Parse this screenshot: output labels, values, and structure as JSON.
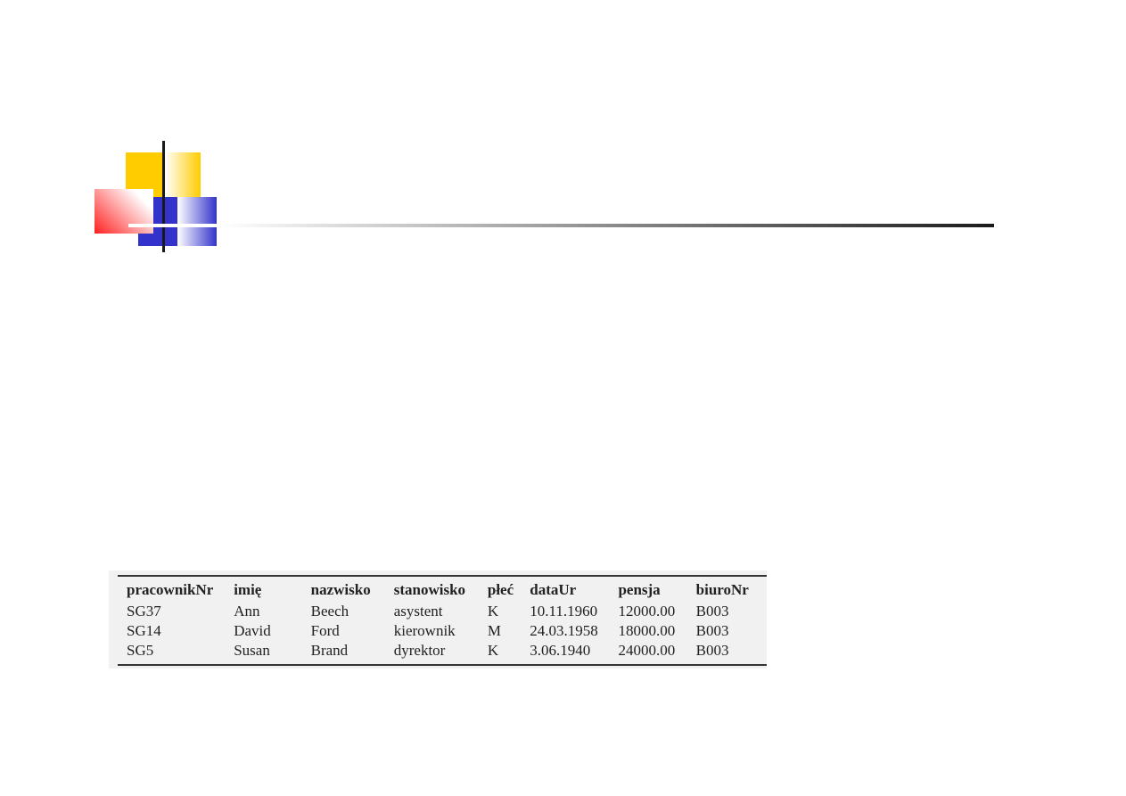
{
  "logo": {
    "colors": {
      "yellow": "#ffcc00",
      "blue": "#3333cc",
      "red": "#ff2020"
    }
  },
  "table": {
    "headers": [
      "pracownikNr",
      "imię",
      "nazwisko",
      "stanowisko",
      "płeć",
      "dataUr",
      "pensja",
      "biuroNr"
    ],
    "rows": [
      [
        "SG37",
        "Ann",
        "Beech",
        "asystent",
        "K",
        "10.11.1960",
        "12000.00",
        "B003"
      ],
      [
        "SG14",
        "David",
        "Ford",
        "kierownik",
        "M",
        "24.03.1958",
        "18000.00",
        "B003"
      ],
      [
        "SG5",
        "Susan",
        "Brand",
        "dyrektor",
        "K",
        "3.06.1940",
        "24000.00",
        "B003"
      ]
    ]
  }
}
